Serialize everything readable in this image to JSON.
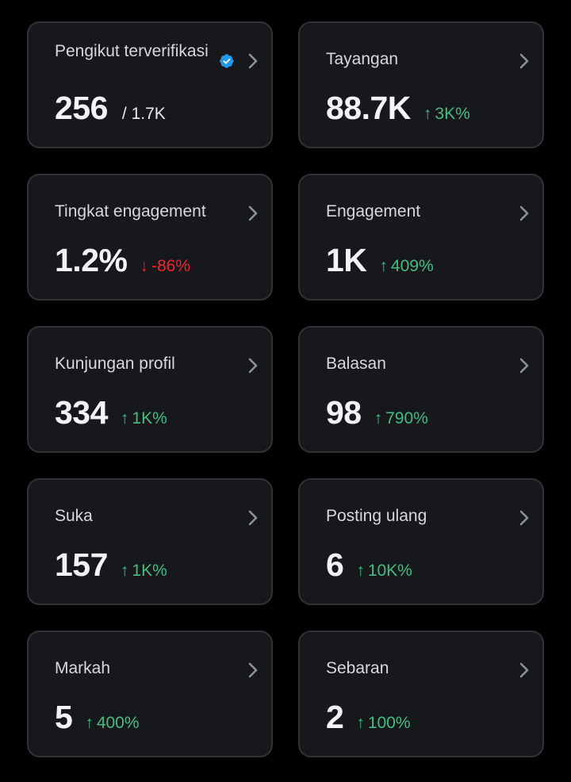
{
  "colors": {
    "background": "#000000",
    "card": "#16181c",
    "card_border": "#2f3336",
    "positive": "#3fbf7f",
    "negative": "#f4212e",
    "verified": "#1d9bf0"
  },
  "cards": [
    {
      "label": "Pengikut terverifikasi",
      "value": "256",
      "sub": "/ 1.7K",
      "verified_icon": "verified-badge-icon"
    },
    {
      "label": "Tayangan",
      "value": "88.7K",
      "change": "3K%",
      "direction": "up"
    },
    {
      "label": "Tingkat engagement",
      "value": "1.2%",
      "change": "-86%",
      "direction": "down"
    },
    {
      "label": "Engagement",
      "value": "1K",
      "change": "409%",
      "direction": "up"
    },
    {
      "label": "Kunjungan profil",
      "value": "334",
      "change": "1K%",
      "direction": "up"
    },
    {
      "label": "Balasan",
      "value": "98",
      "change": "790%",
      "direction": "up"
    },
    {
      "label": "Suka",
      "value": "157",
      "change": "1K%",
      "direction": "up"
    },
    {
      "label": "Posting ulang",
      "value": "6",
      "change": "10K%",
      "direction": "up"
    },
    {
      "label": "Markah",
      "value": "5",
      "change": "400%",
      "direction": "up"
    },
    {
      "label": "Sebaran",
      "value": "2",
      "change": "100%",
      "direction": "up"
    }
  ],
  "icons": {
    "chevron": "chevron-right-icon",
    "up": "arrow-up-icon",
    "down": "arrow-down-icon"
  },
  "arrows": {
    "up": "↑",
    "down": "↓"
  }
}
